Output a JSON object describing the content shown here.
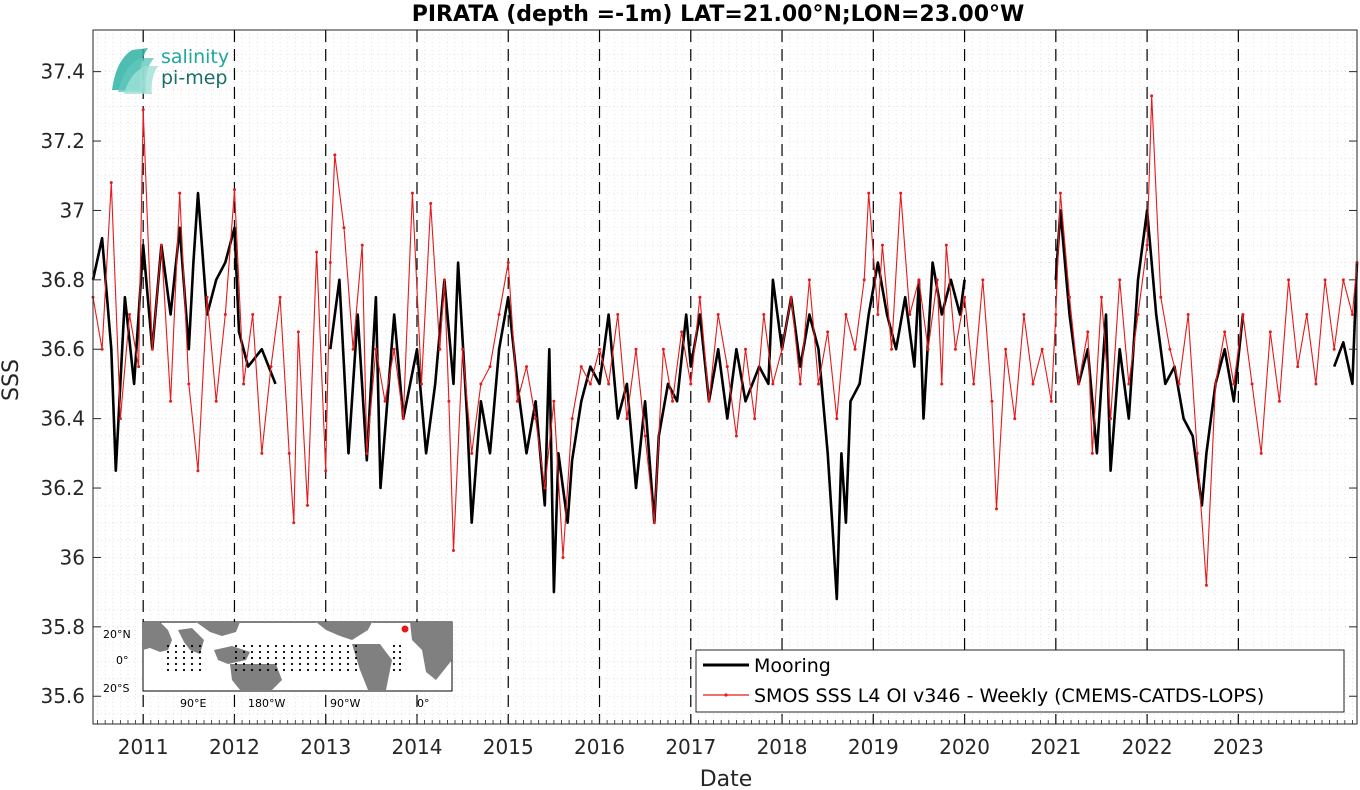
{
  "chart_data": {
    "type": "line",
    "title": "PIRATA (depth =-1m) LAT=21.00°N;LON=23.00°W",
    "xlabel": "Date",
    "ylabel": "SSS",
    "xlim": [
      2010.45,
      2024.3
    ],
    "ylim": [
      35.52,
      37.52
    ],
    "x_ticks": [
      "2011",
      "2012",
      "2013",
      "2014",
      "2015",
      "2016",
      "2017",
      "2018",
      "2019",
      "2020",
      "2021",
      "2022",
      "2023"
    ],
    "x_tick_values": [
      2011.0,
      2012.0,
      2013.0,
      2014.0,
      2015.0,
      2016.0,
      2017.0,
      2018.0,
      2019.0,
      2020.0,
      2021.0,
      2022.0,
      2023.0
    ],
    "y_ticks": [
      "35.6",
      "35.8",
      "36",
      "36.2",
      "36.4",
      "36.6",
      "36.8",
      "37",
      "37.2",
      "37.4"
    ],
    "y_tick_values": [
      35.6,
      35.8,
      36.0,
      36.2,
      36.4,
      36.6,
      36.8,
      37.0,
      37.2,
      37.4
    ],
    "grid": true,
    "year_lines": "dashed vertical at each year boundary",
    "legend_position": "bottom-right",
    "series": [
      {
        "name": "Mooring",
        "color": "#000000",
        "style": "thick line",
        "points": [
          [
            2010.45,
            36.8
          ],
          [
            2010.55,
            36.92
          ],
          [
            2010.65,
            36.6
          ],
          [
            2010.7,
            36.25
          ],
          [
            2010.8,
            36.75
          ],
          [
            2010.9,
            36.5
          ],
          [
            2011.0,
            36.9
          ],
          [
            2011.1,
            36.6
          ],
          [
            2011.2,
            36.9
          ],
          [
            2011.3,
            36.7
          ],
          [
            2011.4,
            36.95
          ],
          [
            2011.5,
            36.6
          ],
          [
            2011.55,
            36.85
          ],
          [
            2011.6,
            37.05
          ],
          [
            2011.7,
            36.7
          ],
          [
            2011.8,
            36.8
          ],
          [
            2011.9,
            36.85
          ],
          [
            2012.0,
            36.95
          ],
          [
            2012.05,
            36.65
          ],
          [
            2012.15,
            36.55
          ],
          [
            2012.3,
            36.6
          ],
          [
            2012.45,
            36.5
          ],
          [
            2013.05,
            36.6
          ],
          [
            2013.15,
            36.8
          ],
          [
            2013.2,
            36.55
          ],
          [
            2013.25,
            36.3
          ],
          [
            2013.35,
            36.7
          ],
          [
            2013.45,
            36.28
          ],
          [
            2013.55,
            36.75
          ],
          [
            2013.6,
            36.2
          ],
          [
            2013.75,
            36.7
          ],
          [
            2013.85,
            36.4
          ],
          [
            2014.0,
            36.6
          ],
          [
            2014.1,
            36.3
          ],
          [
            2014.2,
            36.5
          ],
          [
            2014.3,
            36.8
          ],
          [
            2014.4,
            36.5
          ],
          [
            2014.45,
            36.85
          ],
          [
            2014.55,
            36.4
          ],
          [
            2014.6,
            36.1
          ],
          [
            2014.7,
            36.45
          ],
          [
            2014.8,
            36.3
          ],
          [
            2014.9,
            36.6
          ],
          [
            2015.0,
            36.75
          ],
          [
            2015.1,
            36.5
          ],
          [
            2015.2,
            36.3
          ],
          [
            2015.3,
            36.45
          ],
          [
            2015.4,
            36.15
          ],
          [
            2015.45,
            36.6
          ],
          [
            2015.5,
            35.9
          ],
          [
            2015.55,
            36.3
          ],
          [
            2015.65,
            36.1
          ],
          [
            2015.7,
            36.28
          ],
          [
            2015.8,
            36.45
          ],
          [
            2015.9,
            36.55
          ],
          [
            2016.0,
            36.5
          ],
          [
            2016.1,
            36.7
          ],
          [
            2016.2,
            36.4
          ],
          [
            2016.3,
            36.5
          ],
          [
            2016.4,
            36.2
          ],
          [
            2016.5,
            36.45
          ],
          [
            2016.6,
            36.1
          ],
          [
            2016.65,
            36.35
          ],
          [
            2016.75,
            36.5
          ],
          [
            2016.85,
            36.45
          ],
          [
            2016.95,
            36.7
          ],
          [
            2017.0,
            36.55
          ],
          [
            2017.1,
            36.7
          ],
          [
            2017.2,
            36.45
          ],
          [
            2017.3,
            36.6
          ],
          [
            2017.4,
            36.4
          ],
          [
            2017.5,
            36.6
          ],
          [
            2017.6,
            36.45
          ],
          [
            2017.75,
            36.55
          ],
          [
            2017.85,
            36.5
          ],
          [
            2017.9,
            36.8
          ],
          [
            2018.0,
            36.6
          ],
          [
            2018.1,
            36.75
          ],
          [
            2018.2,
            36.55
          ],
          [
            2018.3,
            36.7
          ],
          [
            2018.4,
            36.6
          ],
          [
            2018.5,
            36.3
          ],
          [
            2018.55,
            36.1
          ],
          [
            2018.6,
            35.88
          ],
          [
            2018.65,
            36.3
          ],
          [
            2018.7,
            36.1
          ],
          [
            2018.75,
            36.45
          ],
          [
            2018.85,
            36.5
          ],
          [
            2018.95,
            36.7
          ],
          [
            2019.05,
            36.85
          ],
          [
            2019.15,
            36.7
          ],
          [
            2019.25,
            36.6
          ],
          [
            2019.35,
            36.75
          ],
          [
            2019.45,
            36.55
          ],
          [
            2019.5,
            36.8
          ],
          [
            2019.55,
            36.4
          ],
          [
            2019.65,
            36.85
          ],
          [
            2019.75,
            36.7
          ],
          [
            2019.85,
            36.8
          ],
          [
            2019.95,
            36.7
          ],
          [
            2020.0,
            36.8
          ],
          [
            2021.0,
            36.8
          ],
          [
            2021.05,
            37.0
          ],
          [
            2021.15,
            36.7
          ],
          [
            2021.25,
            36.5
          ],
          [
            2021.35,
            36.6
          ],
          [
            2021.45,
            36.3
          ],
          [
            2021.55,
            36.7
          ],
          [
            2021.6,
            36.25
          ],
          [
            2021.7,
            36.6
          ],
          [
            2021.8,
            36.4
          ],
          [
            2021.9,
            36.8
          ],
          [
            2022.0,
            37.0
          ],
          [
            2022.1,
            36.7
          ],
          [
            2022.2,
            36.5
          ],
          [
            2022.3,
            36.55
          ],
          [
            2022.4,
            36.4
          ],
          [
            2022.5,
            36.35
          ],
          [
            2022.6,
            36.15
          ],
          [
            2022.65,
            36.3
          ],
          [
            2022.75,
            36.5
          ],
          [
            2022.85,
            36.6
          ],
          [
            2022.95,
            36.45
          ],
          [
            2023.05,
            36.7
          ],
          [
            2024.05,
            36.55
          ],
          [
            2024.15,
            36.62
          ],
          [
            2024.25,
            36.5
          ],
          [
            2024.3,
            36.85
          ]
        ]
      },
      {
        "name": "SMOS SSS L4 OI v346 - Weekly (CMEMS-CATDS-LOPS)",
        "color": "#e41a1c",
        "style": "thin line with point markers",
        "points": [
          [
            2010.45,
            36.75
          ],
          [
            2010.55,
            36.6
          ],
          [
            2010.65,
            37.08
          ],
          [
            2010.75,
            36.4
          ],
          [
            2010.85,
            36.7
          ],
          [
            2010.95,
            36.55
          ],
          [
            2011.0,
            37.29
          ],
          [
            2011.1,
            36.6
          ],
          [
            2011.2,
            36.9
          ],
          [
            2011.3,
            36.45
          ],
          [
            2011.4,
            37.05
          ],
          [
            2011.5,
            36.5
          ],
          [
            2011.6,
            36.25
          ],
          [
            2011.7,
            36.75
          ],
          [
            2011.8,
            36.45
          ],
          [
            2011.9,
            36.7
          ],
          [
            2012.0,
            37.06
          ],
          [
            2012.1,
            36.5
          ],
          [
            2012.2,
            36.7
          ],
          [
            2012.3,
            36.3
          ],
          [
            2012.4,
            36.55
          ],
          [
            2012.5,
            36.75
          ],
          [
            2012.6,
            36.3
          ],
          [
            2012.65,
            36.1
          ],
          [
            2012.7,
            36.65
          ],
          [
            2012.8,
            36.15
          ],
          [
            2012.9,
            36.88
          ],
          [
            2013.0,
            36.25
          ],
          [
            2013.05,
            36.85
          ],
          [
            2013.1,
            37.16
          ],
          [
            2013.2,
            36.95
          ],
          [
            2013.3,
            36.6
          ],
          [
            2013.4,
            36.9
          ],
          [
            2013.45,
            36.3
          ],
          [
            2013.55,
            36.6
          ],
          [
            2013.65,
            36.45
          ],
          [
            2013.75,
            36.6
          ],
          [
            2013.85,
            36.4
          ],
          [
            2013.95,
            37.05
          ],
          [
            2014.05,
            36.5
          ],
          [
            2014.15,
            37.02
          ],
          [
            2014.25,
            36.6
          ],
          [
            2014.3,
            36.8
          ],
          [
            2014.35,
            36.45
          ],
          [
            2014.4,
            36.02
          ],
          [
            2014.5,
            36.6
          ],
          [
            2014.6,
            36.3
          ],
          [
            2014.7,
            36.5
          ],
          [
            2014.8,
            36.55
          ],
          [
            2014.9,
            36.7
          ],
          [
            2015.0,
            36.85
          ],
          [
            2015.1,
            36.45
          ],
          [
            2015.2,
            36.55
          ],
          [
            2015.3,
            36.4
          ],
          [
            2015.4,
            36.2
          ],
          [
            2015.5,
            36.45
          ],
          [
            2015.6,
            36.0
          ],
          [
            2015.7,
            36.4
          ],
          [
            2015.8,
            36.55
          ],
          [
            2015.9,
            36.5
          ],
          [
            2016.0,
            36.6
          ],
          [
            2016.1,
            36.5
          ],
          [
            2016.2,
            36.7
          ],
          [
            2016.3,
            36.4
          ],
          [
            2016.4,
            36.6
          ],
          [
            2016.5,
            36.35
          ],
          [
            2016.6,
            36.1
          ],
          [
            2016.7,
            36.6
          ],
          [
            2016.8,
            36.45
          ],
          [
            2016.9,
            36.65
          ],
          [
            2017.0,
            36.5
          ],
          [
            2017.1,
            36.75
          ],
          [
            2017.2,
            36.45
          ],
          [
            2017.3,
            36.7
          ],
          [
            2017.4,
            36.55
          ],
          [
            2017.5,
            36.35
          ],
          [
            2017.6,
            36.6
          ],
          [
            2017.7,
            36.4
          ],
          [
            2017.8,
            36.7
          ],
          [
            2017.9,
            36.5
          ],
          [
            2018.0,
            36.6
          ],
          [
            2018.1,
            36.75
          ],
          [
            2018.2,
            36.5
          ],
          [
            2018.3,
            36.8
          ],
          [
            2018.4,
            36.5
          ],
          [
            2018.5,
            36.65
          ],
          [
            2018.6,
            36.4
          ],
          [
            2018.7,
            36.7
          ],
          [
            2018.8,
            36.6
          ],
          [
            2018.9,
            36.8
          ],
          [
            2018.95,
            37.05
          ],
          [
            2019.05,
            36.7
          ],
          [
            2019.1,
            36.9
          ],
          [
            2019.2,
            36.6
          ],
          [
            2019.3,
            37.05
          ],
          [
            2019.4,
            36.7
          ],
          [
            2019.5,
            36.8
          ],
          [
            2019.6,
            36.6
          ],
          [
            2019.7,
            36.8
          ],
          [
            2019.75,
            36.5
          ],
          [
            2019.8,
            36.9
          ],
          [
            2019.9,
            36.6
          ],
          [
            2020.0,
            36.75
          ],
          [
            2020.1,
            36.5
          ],
          [
            2020.2,
            36.8
          ],
          [
            2020.3,
            36.45
          ],
          [
            2020.35,
            36.14
          ],
          [
            2020.45,
            36.6
          ],
          [
            2020.55,
            36.4
          ],
          [
            2020.65,
            36.7
          ],
          [
            2020.75,
            36.5
          ],
          [
            2020.85,
            36.6
          ],
          [
            2020.95,
            36.45
          ],
          [
            2021.0,
            36.7
          ],
          [
            2021.05,
            37.05
          ],
          [
            2021.15,
            36.75
          ],
          [
            2021.25,
            36.5
          ],
          [
            2021.35,
            36.65
          ],
          [
            2021.4,
            36.3
          ],
          [
            2021.5,
            36.75
          ],
          [
            2021.6,
            36.4
          ],
          [
            2021.7,
            36.8
          ],
          [
            2021.8,
            36.5
          ],
          [
            2021.9,
            36.7
          ],
          [
            2022.0,
            36.9
          ],
          [
            2022.05,
            37.33
          ],
          [
            2022.15,
            36.75
          ],
          [
            2022.25,
            36.6
          ],
          [
            2022.35,
            36.5
          ],
          [
            2022.45,
            36.7
          ],
          [
            2022.55,
            36.3
          ],
          [
            2022.65,
            35.92
          ],
          [
            2022.75,
            36.5
          ],
          [
            2022.85,
            36.65
          ],
          [
            2022.95,
            36.5
          ],
          [
            2023.05,
            36.7
          ],
          [
            2023.15,
            36.5
          ],
          [
            2023.25,
            36.3
          ],
          [
            2023.35,
            36.65
          ],
          [
            2023.45,
            36.45
          ],
          [
            2023.55,
            36.8
          ],
          [
            2023.65,
            36.55
          ],
          [
            2023.75,
            36.7
          ],
          [
            2023.85,
            36.5
          ],
          [
            2023.95,
            36.8
          ],
          [
            2024.05,
            36.6
          ],
          [
            2024.15,
            36.8
          ],
          [
            2024.25,
            36.7
          ],
          [
            2024.3,
            36.85
          ]
        ]
      }
    ]
  },
  "logo": {
    "line1": "salinity",
    "line2": "pi-mep",
    "color1": "#1fa89a",
    "color2": "#1c6e6a"
  },
  "inset_map": {
    "labels": {
      "lat_n": "20°N",
      "lat_0": "0°",
      "lat_s": "20°S",
      "lon_90e": "90°E",
      "lon_180w": "180°W",
      "lon_90w": "90°W",
      "lon_0": "0°"
    },
    "ocean_color": "#ffffff",
    "land_color": "#808080",
    "marker_color": "#e41a1c"
  }
}
